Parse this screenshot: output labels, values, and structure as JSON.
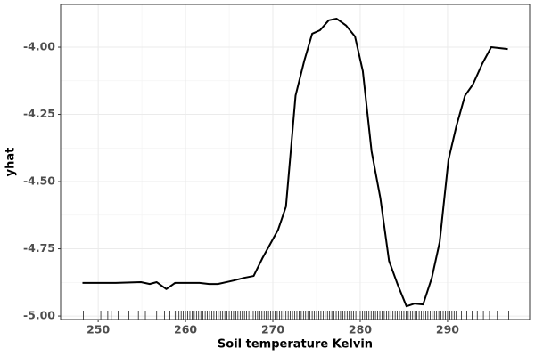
{
  "chart_data": {
    "type": "line",
    "x_label": "Soil temperature Kelvin",
    "y_label": "yhat",
    "x": [
      248.2,
      250,
      252,
      254.9,
      255.9,
      256.7,
      257.8,
      258.8,
      261.6,
      262.7,
      263.7,
      265.5,
      266.7,
      267.8,
      268.8,
      270.6,
      271.5,
      272.6,
      273.6,
      274.5,
      275.4,
      276.4,
      277.3,
      278.4,
      279.4,
      280.3,
      281.3,
      282.3,
      283.3,
      284.3,
      285.3,
      286.2,
      287.2,
      288.2,
      289.1,
      290.1,
      291,
      292,
      292.9,
      294,
      295,
      296.9
    ],
    "series": [
      {
        "name": "yhat",
        "color": "#000000",
        "values": [
          -4.877,
          -4.877,
          -4.877,
          -4.874,
          -4.881,
          -4.874,
          -4.9,
          -4.877,
          -4.877,
          -4.881,
          -4.881,
          -4.868,
          -4.858,
          -4.851,
          -4.785,
          -4.679,
          -4.593,
          -4.18,
          -4.05,
          -3.95,
          -3.937,
          -3.9,
          -3.894,
          -3.92,
          -3.96,
          -4.089,
          -4.387,
          -4.56,
          -4.795,
          -4.884,
          -4.964,
          -4.954,
          -4.957,
          -4.858,
          -4.725,
          -4.42,
          -4.295,
          -4.18,
          -4.139,
          -4.06,
          -4.0,
          -4.007
        ]
      }
    ],
    "rug": [
      248.3,
      250.3,
      251.1,
      251.5,
      252.3,
      253.5,
      254.6,
      255.4,
      256.7,
      257.6,
      258.2,
      258.8,
      259,
      259.25,
      259.5,
      259.75,
      260,
      260.25,
      260.5,
      260.75,
      261,
      261.25,
      261.5,
      261.75,
      262,
      262.25,
      262.5,
      262.75,
      263,
      263.25,
      263.5,
      263.75,
      264,
      264.25,
      264.5,
      264.75,
      265,
      265.25,
      265.5,
      265.75,
      266,
      266.25,
      266.5,
      266.75,
      267,
      267.25,
      267.5,
      267.75,
      268,
      268.25,
      268.5,
      268.75,
      269,
      269.25,
      269.5,
      269.75,
      270,
      270.25,
      270.5,
      270.75,
      271,
      271.25,
      271.5,
      271.75,
      272,
      272.25,
      272.5,
      272.75,
      273,
      273.25,
      273.5,
      273.75,
      274,
      274.25,
      274.5,
      274.75,
      275,
      275.25,
      275.5,
      275.75,
      276,
      276.25,
      276.5,
      276.75,
      277,
      277.25,
      277.5,
      277.75,
      278,
      278.25,
      278.5,
      278.75,
      279,
      279.25,
      279.5,
      279.75,
      280,
      280.25,
      280.5,
      280.75,
      281,
      281.25,
      281.5,
      281.75,
      282,
      282.25,
      282.5,
      282.75,
      283,
      283.25,
      283.5,
      283.75,
      284,
      284.25,
      284.5,
      284.75,
      285,
      285.25,
      285.5,
      285.75,
      286,
      286.25,
      286.5,
      286.75,
      287,
      287.25,
      287.5,
      287.75,
      288,
      288.25,
      288.5,
      288.75,
      289,
      289.25,
      289.5,
      289.75,
      290,
      290.25,
      290.5,
      290.75,
      291,
      291.6,
      292.2,
      292.8,
      293.4,
      294.1,
      294.8,
      295.7,
      297
    ],
    "xlim": [
      245.7,
      299.4
    ],
    "ylim": [
      -5.013,
      -3.841
    ],
    "xticks": [
      250,
      260,
      270,
      280,
      290
    ],
    "yticks": [
      {
        "value": -5,
        "label": "-5.00"
      },
      {
        "value": -4.75,
        "label": "-4.75"
      },
      {
        "value": -4.5,
        "label": "-4.50"
      },
      {
        "value": -4.25,
        "label": "-4.25"
      },
      {
        "value": -4,
        "label": "-4.00"
      }
    ],
    "grid": true
  }
}
